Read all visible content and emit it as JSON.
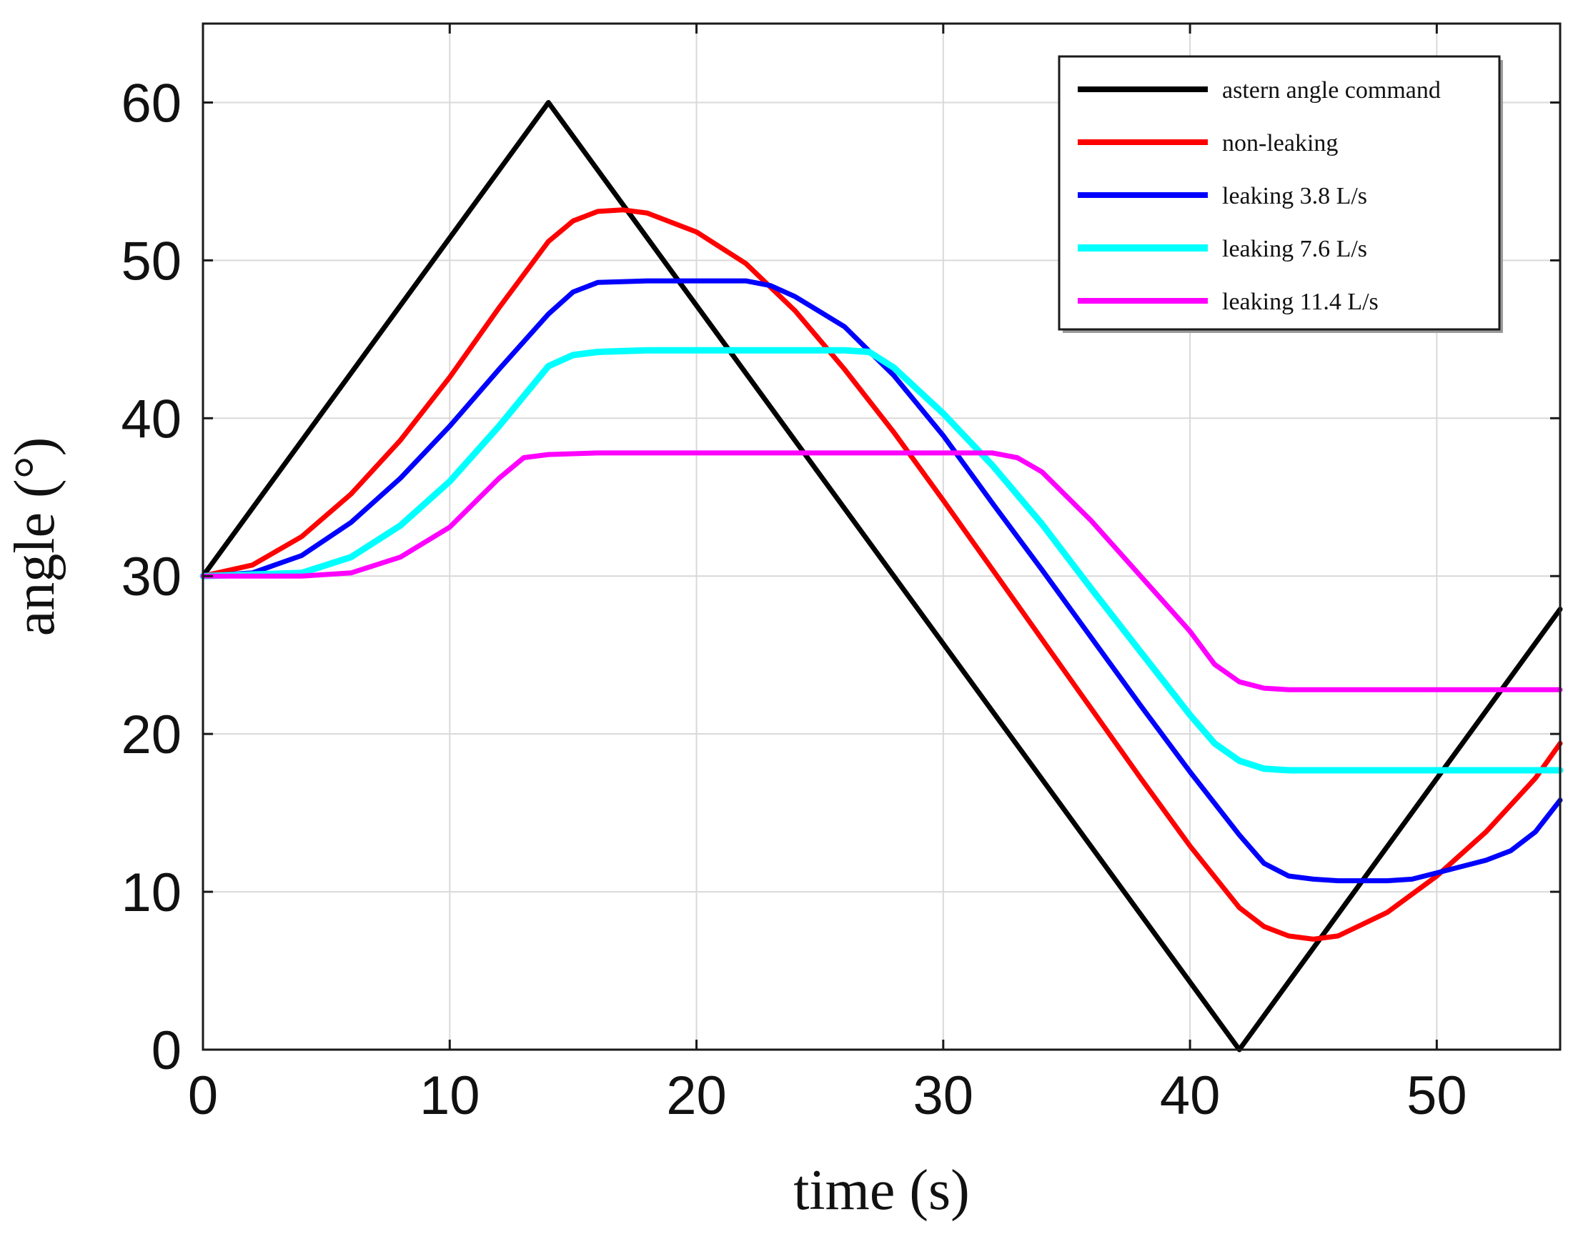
{
  "chart_data": {
    "type": "line",
    "title": "",
    "xlabel": "time (s)",
    "ylabel": "angle (°)",
    "xlim": [
      0,
      55
    ],
    "ylim": [
      0,
      65
    ],
    "xticks": [
      0,
      10,
      20,
      30,
      40,
      50
    ],
    "yticks": [
      0,
      10,
      20,
      30,
      40,
      50,
      60
    ],
    "grid": true,
    "legend_position": "top-right",
    "series": [
      {
        "name": "astern angle command",
        "color": "#000000",
        "points": [
          [
            0,
            30
          ],
          [
            14,
            60
          ],
          [
            42,
            0
          ],
          [
            55,
            27.9
          ]
        ]
      },
      {
        "name": "non-leaking",
        "color": "#ff0000",
        "points": [
          [
            0,
            30
          ],
          [
            2,
            30.7
          ],
          [
            4,
            32.5
          ],
          [
            6,
            35.2
          ],
          [
            8,
            38.6
          ],
          [
            10,
            42.6
          ],
          [
            12,
            47
          ],
          [
            14,
            51.2
          ],
          [
            15,
            52.5
          ],
          [
            16,
            53.1
          ],
          [
            17,
            53.2
          ],
          [
            18,
            53
          ],
          [
            20,
            51.8
          ],
          [
            22,
            49.8
          ],
          [
            24,
            46.8
          ],
          [
            26,
            43.1
          ],
          [
            28,
            39.1
          ],
          [
            30,
            34.8
          ],
          [
            32,
            30.4
          ],
          [
            34,
            26
          ],
          [
            36,
            21.6
          ],
          [
            38,
            17.2
          ],
          [
            40,
            12.9
          ],
          [
            42,
            9
          ],
          [
            43,
            7.8
          ],
          [
            44,
            7.2
          ],
          [
            45,
            7
          ],
          [
            46,
            7.2
          ],
          [
            48,
            8.7
          ],
          [
            50,
            11
          ],
          [
            52,
            13.8
          ],
          [
            54,
            17.2
          ],
          [
            55,
            19.4
          ]
        ]
      },
      {
        "name": "leaking 3.8 L/s",
        "color": "#0000ff",
        "points": [
          [
            0,
            30
          ],
          [
            2,
            30.2
          ],
          [
            4,
            31.3
          ],
          [
            6,
            33.4
          ],
          [
            8,
            36.2
          ],
          [
            10,
            39.5
          ],
          [
            12,
            43.1
          ],
          [
            14,
            46.6
          ],
          [
            15,
            48
          ],
          [
            16,
            48.6
          ],
          [
            18,
            48.7
          ],
          [
            20,
            48.7
          ],
          [
            22,
            48.7
          ],
          [
            23,
            48.4
          ],
          [
            24,
            47.7
          ],
          [
            26,
            45.8
          ],
          [
            28,
            42.7
          ],
          [
            30,
            38.9
          ],
          [
            32,
            34.6
          ],
          [
            34,
            30.4
          ],
          [
            36,
            26.1
          ],
          [
            38,
            21.8
          ],
          [
            40,
            17.6
          ],
          [
            42,
            13.6
          ],
          [
            43,
            11.8
          ],
          [
            44,
            11
          ],
          [
            45,
            10.8
          ],
          [
            46,
            10.7
          ],
          [
            47,
            10.7
          ],
          [
            48,
            10.7
          ],
          [
            49,
            10.8
          ],
          [
            50,
            11.2
          ],
          [
            52,
            12
          ],
          [
            53,
            12.6
          ],
          [
            54,
            13.8
          ],
          [
            55,
            15.8
          ]
        ]
      },
      {
        "name": "leaking 7.6 L/s",
        "color": "#00ffff",
        "points": [
          [
            0,
            30
          ],
          [
            4,
            30.2
          ],
          [
            6,
            31.2
          ],
          [
            8,
            33.2
          ],
          [
            10,
            36
          ],
          [
            12,
            39.5
          ],
          [
            14,
            43.3
          ],
          [
            15,
            44
          ],
          [
            16,
            44.2
          ],
          [
            18,
            44.3
          ],
          [
            22,
            44.3
          ],
          [
            26,
            44.3
          ],
          [
            27,
            44.2
          ],
          [
            28,
            43.2
          ],
          [
            30,
            40.3
          ],
          [
            32,
            37
          ],
          [
            34,
            33.3
          ],
          [
            36,
            29.2
          ],
          [
            38,
            25.2
          ],
          [
            40,
            21.2
          ],
          [
            41,
            19.4
          ],
          [
            42,
            18.3
          ],
          [
            43,
            17.8
          ],
          [
            44,
            17.7
          ],
          [
            48,
            17.7
          ],
          [
            55,
            17.7
          ]
        ]
      },
      {
        "name": "leaking 11.4 L/s",
        "color": "#ff00ff",
        "points": [
          [
            0,
            30
          ],
          [
            4,
            30
          ],
          [
            6,
            30.2
          ],
          [
            8,
            31.2
          ],
          [
            10,
            33.1
          ],
          [
            12,
            36.2
          ],
          [
            13,
            37.5
          ],
          [
            14,
            37.7
          ],
          [
            16,
            37.8
          ],
          [
            20,
            37.8
          ],
          [
            24,
            37.8
          ],
          [
            28,
            37.8
          ],
          [
            32,
            37.8
          ],
          [
            33,
            37.5
          ],
          [
            34,
            36.6
          ],
          [
            36,
            33.5
          ],
          [
            38,
            30
          ],
          [
            40,
            26.5
          ],
          [
            41,
            24.4
          ],
          [
            42,
            23.3
          ],
          [
            43,
            22.9
          ],
          [
            44,
            22.8
          ],
          [
            48,
            22.8
          ],
          [
            55,
            22.8
          ]
        ]
      }
    ]
  }
}
